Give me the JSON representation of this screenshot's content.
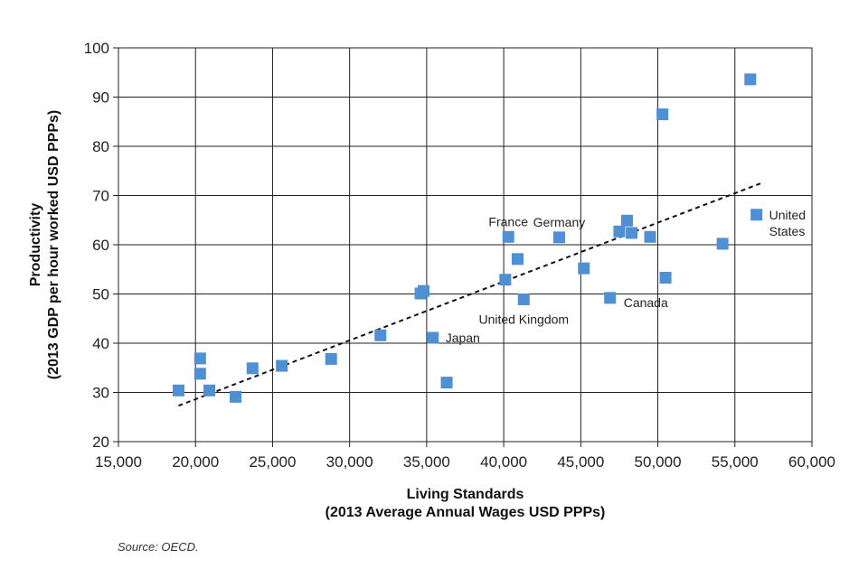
{
  "chart_data": {
    "type": "scatter",
    "xlabel": [
      "Living Standards",
      "(2013 Average Annual Wages USD PPPs)"
    ],
    "ylabel": [
      "Productivity",
      "(2013 GDP per hour worked USD PPPs)"
    ],
    "xlim": [
      15000,
      60000
    ],
    "ylim": [
      20,
      100
    ],
    "xticks": [
      15000,
      20000,
      25000,
      30000,
      35000,
      40000,
      45000,
      50000,
      55000,
      60000
    ],
    "xtick_labels": [
      "15,000",
      "20,000",
      "25,000",
      "30,000",
      "35,000",
      "40,000",
      "45,000",
      "50,000",
      "55,000",
      "60,000"
    ],
    "yticks": [
      20,
      30,
      40,
      50,
      60,
      70,
      80,
      90,
      100
    ],
    "ytick_labels": [
      "20",
      "30",
      "40",
      "50",
      "60",
      "70",
      "80",
      "90",
      "100"
    ],
    "grid": true,
    "marker_color": "#4f8fd3",
    "points": [
      {
        "x": 18900,
        "y": 30.4
      },
      {
        "x": 20300,
        "y": 36.9
      },
      {
        "x": 20300,
        "y": 33.8
      },
      {
        "x": 20900,
        "y": 30.4
      },
      {
        "x": 22600,
        "y": 29.1
      },
      {
        "x": 23700,
        "y": 34.9
      },
      {
        "x": 25600,
        "y": 35.4
      },
      {
        "x": 28800,
        "y": 36.8
      },
      {
        "x": 32000,
        "y": 41.6
      },
      {
        "x": 34600,
        "y": 50.1
      },
      {
        "x": 34800,
        "y": 50.6
      },
      {
        "x": 35400,
        "y": 41.1
      },
      {
        "x": 36300,
        "y": 32.0
      },
      {
        "x": 40100,
        "y": 52.9
      },
      {
        "x": 40300,
        "y": 61.6
      },
      {
        "x": 40900,
        "y": 57.1
      },
      {
        "x": 41300,
        "y": 48.9
      },
      {
        "x": 43600,
        "y": 61.5
      },
      {
        "x": 45200,
        "y": 55.2
      },
      {
        "x": 46900,
        "y": 49.2
      },
      {
        "x": 47500,
        "y": 62.7
      },
      {
        "x": 48000,
        "y": 64.9
      },
      {
        "x": 48300,
        "y": 62.4
      },
      {
        "x": 49500,
        "y": 61.6
      },
      {
        "x": 50300,
        "y": 86.5
      },
      {
        "x": 50500,
        "y": 53.3
      },
      {
        "x": 54200,
        "y": 60.2
      },
      {
        "x": 56000,
        "y": 93.6
      },
      {
        "x": 56400,
        "y": 66.1
      }
    ],
    "trendline": {
      "style": "dashed",
      "from": [
        18900,
        27.3
      ],
      "to": [
        56700,
        72.5
      ]
    },
    "annotations": [
      {
        "text": [
          "France"
        ],
        "x": 40300,
        "y": 61.6,
        "pos": "above"
      },
      {
        "text": [
          "Germany"
        ],
        "x": 43600,
        "y": 61.5,
        "pos": "above"
      },
      {
        "text": [
          "United Kingdom"
        ],
        "x": 41300,
        "y": 48.9,
        "pos": "below"
      },
      {
        "text": [
          "Canada"
        ],
        "x": 46900,
        "y": 49.2,
        "pos": "right-below"
      },
      {
        "text": [
          "Japan"
        ],
        "x": 35400,
        "y": 41.1,
        "pos": "right"
      },
      {
        "text": [
          "United",
          "States"
        ],
        "x": 56400,
        "y": 66.1,
        "pos": "right"
      }
    ]
  },
  "source_note": "Source: OECD."
}
